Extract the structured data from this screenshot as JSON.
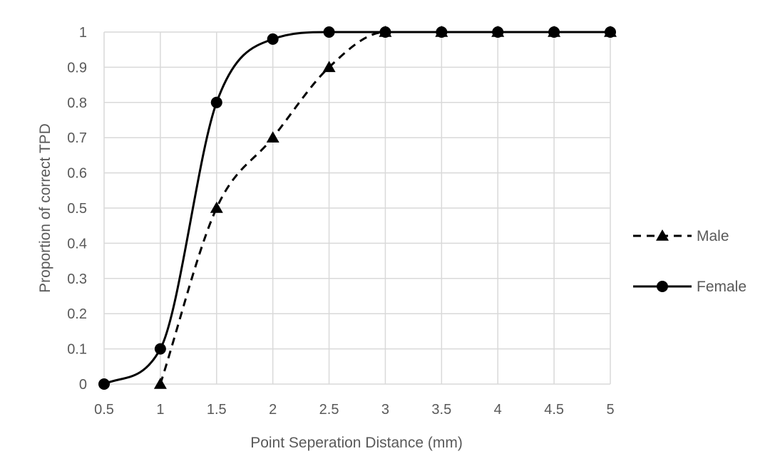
{
  "chart_data": {
    "type": "line",
    "title": "",
    "xlabel": "Point Seperation Distance (mm)",
    "ylabel": "Proportion of correct TPD",
    "xlim": [
      0.5,
      5
    ],
    "ylim": [
      0,
      1
    ],
    "x_ticks": [
      "0.5",
      "1",
      "1.5",
      "2",
      "2.5",
      "3",
      "3.5",
      "4",
      "4.5",
      "5"
    ],
    "y_ticks": [
      "0",
      "0.1",
      "0.2",
      "0.3",
      "0.4",
      "0.5",
      "0.6",
      "0.7",
      "0.8",
      "0.9",
      "1"
    ],
    "grid": true,
    "smooth": true,
    "legend_position": "right",
    "series": [
      {
        "name": "Male",
        "line_style": "dashed",
        "marker": "triangle",
        "color": "#000000",
        "x": [
          1,
          1.5,
          2,
          2.5,
          3,
          3.5,
          4,
          4.5,
          5
        ],
        "y": [
          0,
          0.5,
          0.7,
          0.9,
          1,
          1,
          1,
          1,
          1
        ]
      },
      {
        "name": "Female",
        "line_style": "solid",
        "marker": "circle",
        "color": "#000000",
        "x": [
          0.5,
          1,
          1.5,
          2,
          2.5,
          3,
          3.5,
          4,
          4.5,
          5
        ],
        "y": [
          0,
          0.1,
          0.8,
          0.98,
          1,
          1,
          1,
          1,
          1,
          1
        ]
      }
    ],
    "colors": {
      "grid": "#d9d9d9",
      "text": "#595959",
      "background": "#ffffff"
    }
  }
}
